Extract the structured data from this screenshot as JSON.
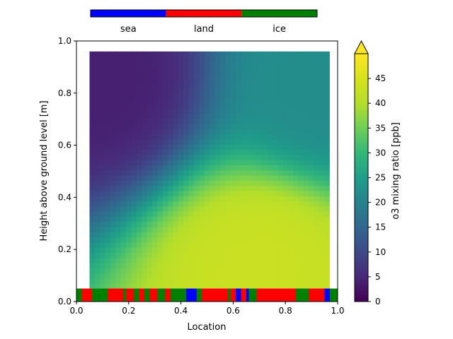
{
  "chart_data": {
    "type": "heatmap",
    "title": "",
    "xlabel": "Location",
    "ylabel": "Height above ground level [m]",
    "xlim": [
      0.0,
      1.0
    ],
    "ylim": [
      0.0,
      1.0
    ],
    "x_ticks": [
      "0.0",
      "0.2",
      "0.4",
      "0.6",
      "0.8",
      "1.0"
    ],
    "y_ticks": [
      "0.0",
      "0.2",
      "0.4",
      "0.6",
      "0.8",
      "1.0"
    ],
    "grid": false,
    "colormap": "viridis",
    "field": {
      "x_range": [
        0.05,
        0.97
      ],
      "y_range": [
        0.05,
        0.96
      ],
      "description_points": [
        {
          "x": 0.08,
          "y": 0.85,
          "value": 4
        },
        {
          "x": 0.7,
          "y": 0.12,
          "value": 43
        },
        {
          "x": 0.95,
          "y": 0.85,
          "value": 22
        }
      ]
    },
    "colorbar": {
      "label": "o3 mixing ratio [ppb]",
      "range": [
        0,
        50
      ],
      "ticks": [
        "0",
        "5",
        "10",
        "15",
        "20",
        "25",
        "30",
        "35",
        "40",
        "45"
      ],
      "extend": "max"
    },
    "surface_legend": {
      "entries": [
        {
          "label": "sea",
          "color": "#0000ff"
        },
        {
          "label": "land",
          "color": "#ff0000"
        },
        {
          "label": "ice",
          "color": "#008000"
        }
      ]
    },
    "surface_strip": [
      {
        "x0": 0.0,
        "x1": 0.02,
        "type": "ice"
      },
      {
        "x0": 0.02,
        "x1": 0.06,
        "type": "land"
      },
      {
        "x0": 0.06,
        "x1": 0.12,
        "type": "ice"
      },
      {
        "x0": 0.12,
        "x1": 0.18,
        "type": "land"
      },
      {
        "x0": 0.18,
        "x1": 0.19,
        "type": "ice"
      },
      {
        "x0": 0.19,
        "x1": 0.22,
        "type": "land"
      },
      {
        "x0": 0.22,
        "x1": 0.24,
        "type": "ice"
      },
      {
        "x0": 0.24,
        "x1": 0.26,
        "type": "land"
      },
      {
        "x0": 0.26,
        "x1": 0.28,
        "type": "ice"
      },
      {
        "x0": 0.28,
        "x1": 0.31,
        "type": "land"
      },
      {
        "x0": 0.31,
        "x1": 0.34,
        "type": "ice"
      },
      {
        "x0": 0.34,
        "x1": 0.36,
        "type": "land"
      },
      {
        "x0": 0.36,
        "x1": 0.42,
        "type": "ice"
      },
      {
        "x0": 0.42,
        "x1": 0.46,
        "type": "sea"
      },
      {
        "x0": 0.46,
        "x1": 0.48,
        "type": "ice"
      },
      {
        "x0": 0.48,
        "x1": 0.58,
        "type": "land"
      },
      {
        "x0": 0.58,
        "x1": 0.59,
        "type": "ice"
      },
      {
        "x0": 0.59,
        "x1": 0.61,
        "type": "land"
      },
      {
        "x0": 0.61,
        "x1": 0.63,
        "type": "sea"
      },
      {
        "x0": 0.63,
        "x1": 0.65,
        "type": "land"
      },
      {
        "x0": 0.65,
        "x1": 0.66,
        "type": "sea"
      },
      {
        "x0": 0.66,
        "x1": 0.69,
        "type": "ice"
      },
      {
        "x0": 0.69,
        "x1": 0.84,
        "type": "land"
      },
      {
        "x0": 0.84,
        "x1": 0.89,
        "type": "ice"
      },
      {
        "x0": 0.89,
        "x1": 0.95,
        "type": "land"
      },
      {
        "x0": 0.95,
        "x1": 0.97,
        "type": "sea"
      },
      {
        "x0": 0.97,
        "x1": 1.0,
        "type": "ice"
      }
    ]
  }
}
